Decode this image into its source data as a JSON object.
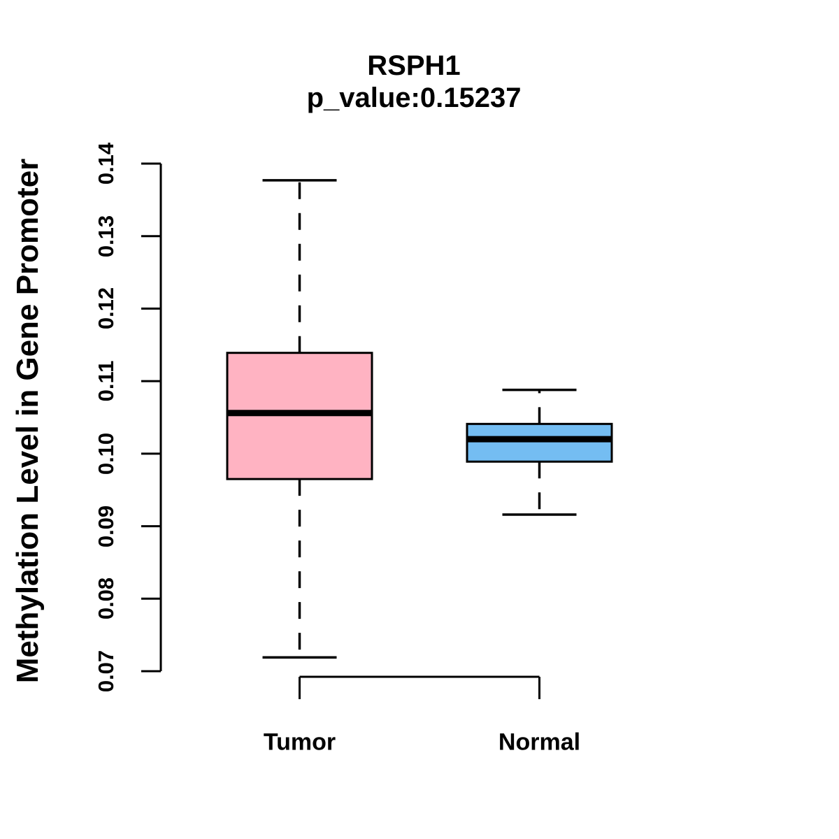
{
  "chart_data": {
    "type": "boxplot",
    "title": "RSPH1",
    "subtitle": "p_value:0.15237",
    "gene": "RSPH1",
    "p_value": "0.15237",
    "ylabel": "Methylation Level in Gene Promoter",
    "y_axis": {
      "min": 0.07,
      "max": 0.14,
      "tick_labels": [
        "0.07",
        "0.08",
        "0.09",
        "0.10",
        "0.11",
        "0.12",
        "0.13",
        "0.14"
      ]
    },
    "categories": [
      "Tumor",
      "Normal"
    ],
    "groups": [
      {
        "label": "Tumor",
        "color": "#FFB3C2",
        "whisker_low": 0.0719,
        "q1": 0.0965,
        "median": 0.1056,
        "q3": 0.1139,
        "whisker_high": 0.1377
      },
      {
        "label": "Normal",
        "color": "#74BDF2",
        "whisker_low": 0.0916,
        "q1": 0.0989,
        "median": 0.102,
        "q3": 0.1041,
        "whisker_high": 0.1088
      }
    ],
    "layout_hints": {
      "legend": "none",
      "grid": false,
      "background": "#FFFFFF",
      "stroke_color": "#000000",
      "whisker_style": "dashed"
    }
  }
}
